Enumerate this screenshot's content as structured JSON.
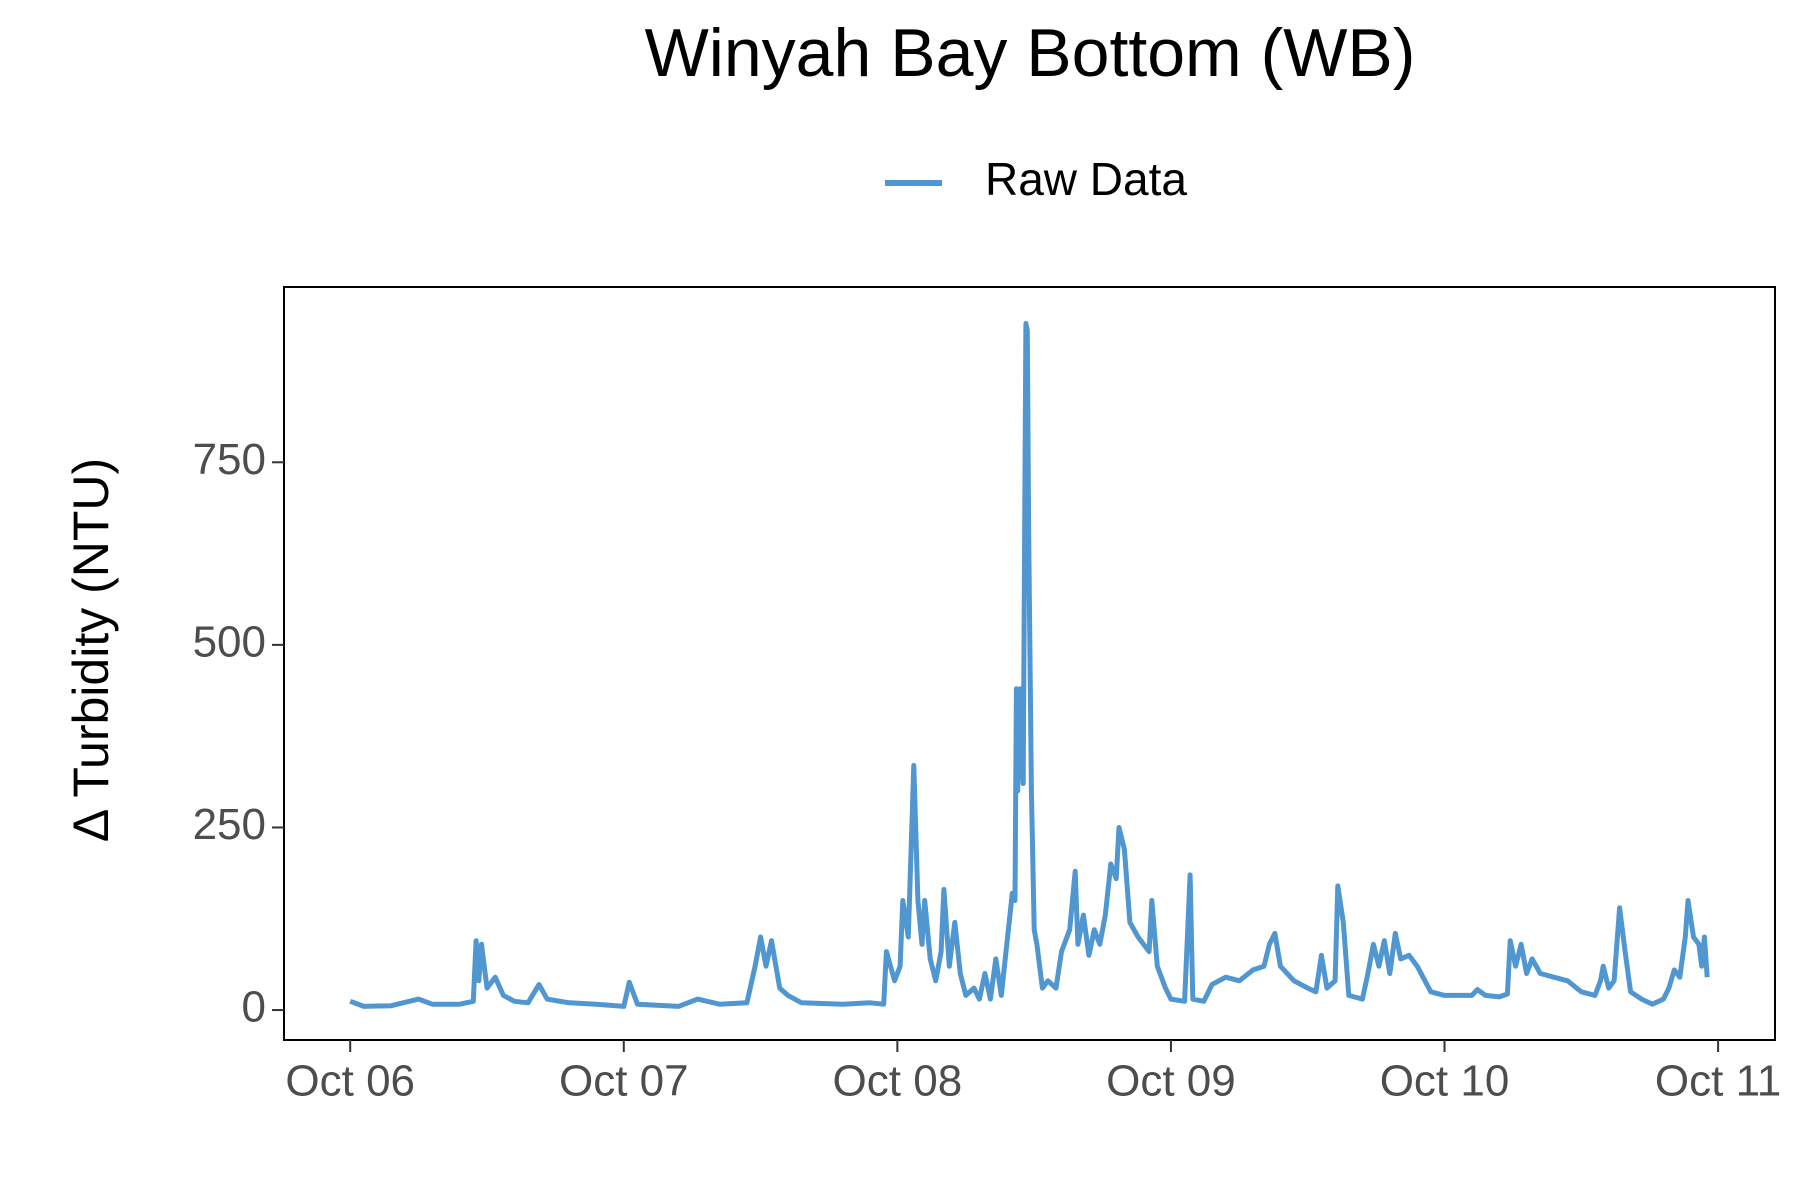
{
  "chart_data": {
    "type": "line",
    "title": "Winyah Bay Bottom (WB)",
    "y_label": "Δ Turbidity (NTU)",
    "xlim": [
      5.758,
      11.208
    ],
    "ylim": [
      -41,
      990
    ],
    "xticks": [
      {
        "value": 6,
        "label": "Oct 06"
      },
      {
        "value": 7,
        "label": "Oct 07"
      },
      {
        "value": 8,
        "label": "Oct 08"
      },
      {
        "value": 9,
        "label": "Oct 09"
      },
      {
        "value": 10,
        "label": "Oct 10"
      },
      {
        "value": 11,
        "label": "Oct 11"
      }
    ],
    "yticks": [
      0,
      250,
      500,
      750
    ],
    "grid": false,
    "legend": "top",
    "x": [
      6.0,
      6.05,
      6.15,
      6.25,
      6.3,
      6.4,
      6.45,
      6.46,
      6.47,
      6.48,
      6.5,
      6.53,
      6.56,
      6.6,
      6.65,
      6.69,
      6.72,
      6.8,
      6.9,
      7.0,
      7.02,
      7.05,
      7.2,
      7.27,
      7.35,
      7.45,
      7.48,
      7.5,
      7.52,
      7.54,
      7.57,
      7.6,
      7.65,
      7.8,
      7.9,
      7.95,
      7.96,
      7.99,
      8.01,
      8.02,
      8.04,
      8.06,
      8.075,
      8.09,
      8.1,
      8.12,
      8.14,
      8.16,
      8.17,
      8.19,
      8.21,
      8.23,
      8.25,
      8.28,
      8.3,
      8.32,
      8.34,
      8.36,
      8.38,
      8.42,
      8.43,
      8.435,
      8.44,
      8.45,
      8.46,
      8.465,
      8.47,
      8.475,
      8.48,
      8.49,
      8.5,
      8.51,
      8.53,
      8.55,
      8.58,
      8.6,
      8.63,
      8.65,
      8.66,
      8.68,
      8.7,
      8.72,
      8.74,
      8.76,
      8.78,
      8.8,
      8.81,
      8.83,
      8.85,
      8.88,
      8.92,
      8.93,
      8.95,
      8.98,
      9.0,
      9.05,
      9.07,
      9.08,
      9.12,
      9.15,
      9.2,
      9.25,
      9.3,
      9.34,
      9.36,
      9.38,
      9.4,
      9.45,
      9.5,
      9.53,
      9.55,
      9.57,
      9.6,
      9.61,
      9.63,
      9.65,
      9.7,
      9.72,
      9.74,
      9.76,
      9.78,
      9.8,
      9.82,
      9.84,
      9.87,
      9.9,
      9.95,
      10.0,
      10.1,
      10.12,
      10.15,
      10.2,
      10.23,
      10.24,
      10.26,
      10.28,
      10.3,
      10.32,
      10.35,
      10.4,
      10.45,
      10.5,
      10.55,
      10.57,
      10.58,
      10.6,
      10.62,
      10.64,
      10.66,
      10.68,
      10.72,
      10.76,
      10.8,
      10.82,
      10.84,
      10.86,
      10.88,
      10.89,
      10.91,
      10.93,
      10.94,
      10.95,
      10.96
    ],
    "series": [
      {
        "name": "Raw Data",
        "color": "#5096d0",
        "values": [
          12,
          5,
          6,
          15,
          8,
          8,
          12,
          95,
          40,
          90,
          30,
          45,
          20,
          12,
          10,
          35,
          15,
          10,
          8,
          5,
          38,
          8,
          5,
          15,
          8,
          10,
          60,
          100,
          60,
          95,
          30,
          20,
          10,
          8,
          10,
          8,
          80,
          40,
          60,
          150,
          100,
          335,
          150,
          90,
          150,
          70,
          40,
          80,
          165,
          60,
          120,
          50,
          20,
          30,
          15,
          50,
          15,
          70,
          20,
          160,
          150,
          440,
          300,
          440,
          310,
          640,
          940,
          930,
          650,
          300,
          110,
          90,
          30,
          40,
          30,
          80,
          110,
          190,
          90,
          130,
          75,
          110,
          90,
          130,
          200,
          180,
          250,
          220,
          120,
          100,
          80,
          150,
          60,
          30,
          15,
          12,
          185,
          15,
          12,
          35,
          45,
          40,
          55,
          60,
          90,
          105,
          60,
          40,
          30,
          25,
          75,
          30,
          40,
          170,
          120,
          20,
          15,
          50,
          90,
          60,
          95,
          50,
          105,
          70,
          75,
          60,
          25,
          20,
          20,
          28,
          20,
          18,
          22,
          95,
          60,
          90,
          50,
          70,
          50,
          45,
          40,
          25,
          20,
          40,
          60,
          30,
          40,
          140,
          80,
          25,
          15,
          8,
          15,
          30,
          55,
          45,
          100,
          150,
          100,
          90,
          60,
          100,
          45
        ]
      }
    ]
  }
}
